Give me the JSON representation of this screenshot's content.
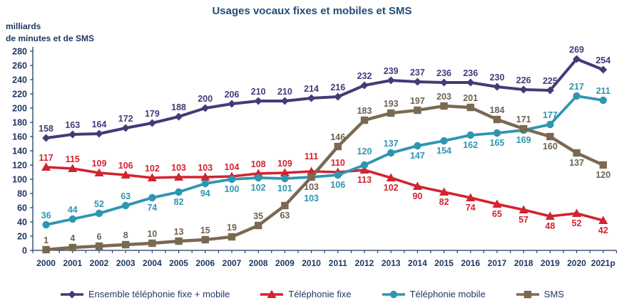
{
  "chart_data": {
    "type": "line",
    "title": "Usages vocaux fixes et mobiles et SMS",
    "unit_line1": "milliards",
    "unit_line2": "de minutes et de SMS",
    "ylabel": "milliards de minutes et de SMS",
    "xlabel": "",
    "ylim": [
      0,
      280
    ],
    "ytick_step": 20,
    "grid": false,
    "legend_position": "bottom",
    "axis_color": "#1F3864",
    "title_color": "#1F4E79",
    "categories": [
      "2000",
      "2001",
      "2002",
      "2003",
      "2004",
      "2005",
      "2006",
      "2007",
      "2008",
      "2009",
      "2010",
      "2011",
      "2012",
      "2013",
      "2014",
      "2015",
      "2016",
      "2017",
      "2018",
      "2019",
      "2020",
      "2021p"
    ],
    "series": [
      {
        "key": "ensemble",
        "name": "Ensemble téléphonie fixe + mobile",
        "color": "#413C77",
        "label_color": "#413C77",
        "marker": "diamond",
        "values": [
          158,
          163,
          164,
          172,
          179,
          188,
          200,
          206,
          210,
          210,
          214,
          216,
          232,
          239,
          237,
          236,
          236,
          230,
          226,
          225,
          269,
          254
        ],
        "labels_below": []
      },
      {
        "key": "fixe",
        "name": "Téléphonie fixe",
        "color": "#D2232E",
        "label_color": "#D2232E",
        "marker": "triangle",
        "values": [
          117,
          115,
          109,
          106,
          102,
          103,
          103,
          104,
          108,
          109,
          111,
          110,
          113,
          102,
          90,
          82,
          74,
          65,
          57,
          48,
          52,
          42
        ],
        "labels_below": [
          12,
          13,
          14,
          15,
          16,
          17,
          18,
          19,
          20,
          21
        ]
      },
      {
        "key": "mobile",
        "name": "Téléphonie mobile",
        "color": "#2E96B0",
        "label_color": "#2E96B0",
        "marker": "circle",
        "values": [
          36,
          44,
          52,
          63,
          74,
          82,
          94,
          100,
          102,
          101,
          103,
          106,
          120,
          137,
          147,
          154,
          162,
          165,
          169,
          177,
          217,
          211
        ],
        "labels_below": [
          4,
          5,
          6,
          7,
          8,
          9,
          10,
          11,
          14,
          15,
          16,
          17,
          18
        ]
      },
      {
        "key": "sms",
        "name": "SMS",
        "color": "#7A6951",
        "label_color": "#6D6352",
        "marker": "square",
        "values": [
          1,
          4,
          6,
          8,
          10,
          13,
          15,
          19,
          35,
          63,
          103,
          146,
          183,
          193,
          197,
          203,
          201,
          184,
          171,
          160,
          137,
          120
        ],
        "labels_below": [
          9,
          10,
          19,
          20,
          21
        ]
      }
    ]
  }
}
